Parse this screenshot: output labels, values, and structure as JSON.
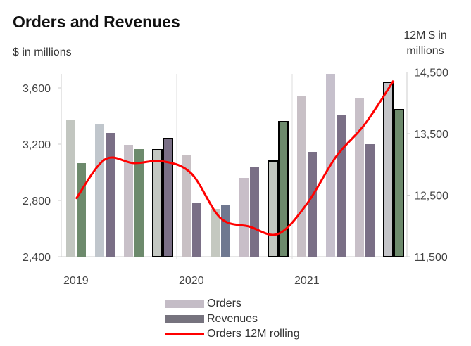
{
  "chart_data": {
    "type": "bar",
    "title": "Orders and Revenues",
    "ylabel": "$ in millions",
    "y2label": "12M $ in millions",
    "categories": [
      "2019 Q1",
      "2019 Q2",
      "2019 Q3",
      "2019 Q4",
      "2020 Q1",
      "2020 Q2",
      "2020 Q3",
      "2020 Q4",
      "2021 Q1",
      "2021 Q2",
      "2021 Q3",
      "2021 Q4"
    ],
    "year_labels": [
      "2019",
      "2020",
      "2021"
    ],
    "ylim": [
      2400,
      3700
    ],
    "yticks": [
      2400,
      2800,
      3200,
      3600
    ],
    "ytick_labels": [
      "2,400",
      "2,800",
      "3,200",
      "3,600"
    ],
    "y2lim": [
      11500,
      14500
    ],
    "y2ticks": [
      11500,
      12500,
      13500,
      14500
    ],
    "y2tick_labels": [
      "11,500",
      "12,500",
      "13,500",
      "14,500"
    ],
    "series": [
      {
        "name": "Orders",
        "type": "bar",
        "axis": "left",
        "color": "#c4bcc6",
        "values": [
          3370,
          3345,
          3195,
          3160,
          3125,
          2740,
          2960,
          3080,
          3540,
          3700,
          3525,
          3640
        ]
      },
      {
        "name": "Revenues",
        "type": "bar",
        "axis": "left",
        "color": "#76737e",
        "values": [
          3065,
          3280,
          3165,
          3240,
          2780,
          2770,
          3035,
          3360,
          3145,
          3410,
          3200,
          3445
        ]
      },
      {
        "name": "Orders 12M rolling",
        "type": "line",
        "axis": "right",
        "color": "#ff0000",
        "values": [
          12440,
          13080,
          13020,
          13050,
          12850,
          12130,
          11990,
          11870,
          12360,
          13120,
          13650,
          14360
        ]
      }
    ],
    "highlighted_quarters": [
      "2019 Q4",
      "2020 Q4",
      "2021 Q4"
    ],
    "grid": false,
    "legend": "bottom"
  }
}
